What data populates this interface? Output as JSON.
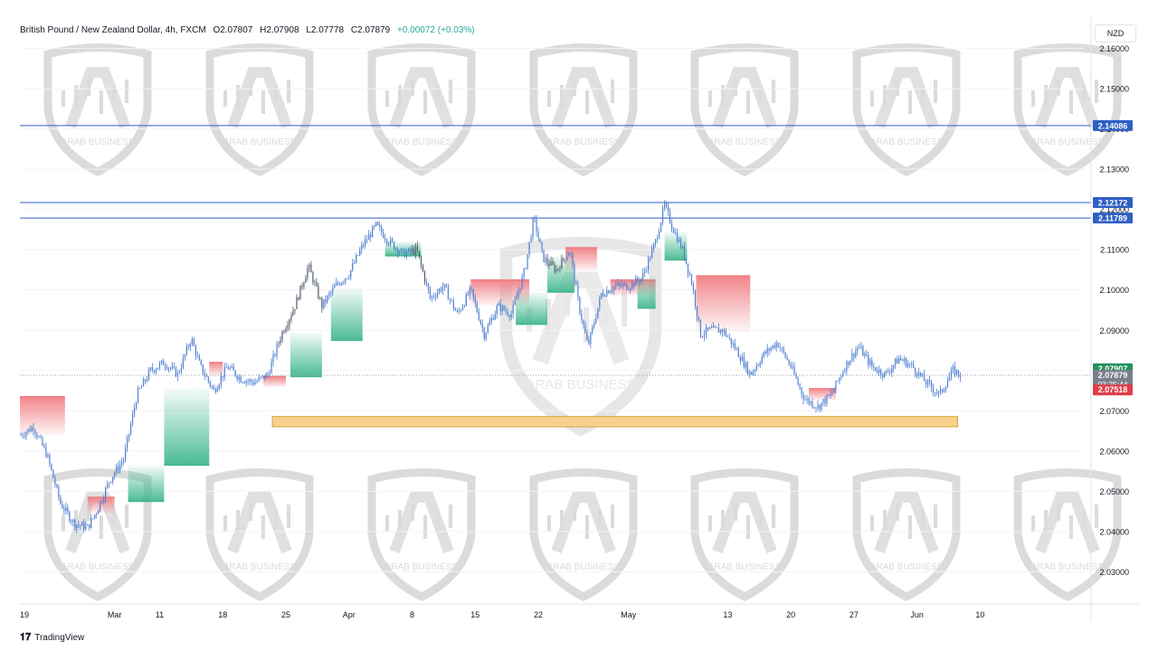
{
  "header": {
    "symbol": "British Pound / New Zealand Dollar, 4h, FXCM",
    "open": "O2.07807",
    "high": "H2.07908",
    "low": "L2.07778",
    "close": "C2.07879",
    "change": "+0.00072 (+0.03%)"
  },
  "currency_button": "NZD",
  "footer": {
    "brand": "TradingView"
  },
  "watermark": {
    "text": "ARAB BUSINESS",
    "monogram": "AB"
  },
  "colors": {
    "candle": "#4f7fd0",
    "candle_dark": "#505a6e",
    "level_line": "#2f5fc4",
    "support_zone_fill": "#f7d28f",
    "support_zone_stroke": "#d9a437",
    "cloud_bull": "#43b88f",
    "cloud_bear": "#f07f84",
    "tag_green": "#26915f",
    "tag_red": "#e03d48",
    "tag_gray": "#7a7f8c",
    "tag_blue": "#2f5fc4"
  },
  "chart_data": {
    "type": "candlestick",
    "title": "British Pound / New Zealand Dollar, 4h, FXCM",
    "ylim": [
      2.022,
      2.168
    ],
    "y_ticks": [
      "2.16000",
      "2.15000",
      "2.14000",
      "2.13000",
      "2.12000",
      "2.11000",
      "2.10000",
      "2.09000",
      "2.08000",
      "2.07000",
      "2.06000",
      "2.05000",
      "2.04000",
      "2.03000"
    ],
    "y_tick_values": [
      2.16,
      2.15,
      2.14,
      2.13,
      2.12,
      2.11,
      2.1,
      2.09,
      2.08,
      2.07,
      2.06,
      2.05,
      2.04,
      2.03
    ],
    "x_ticks": [
      {
        "label": "19",
        "x": 0
      },
      {
        "label": "Mar",
        "x": 10
      },
      {
        "label": "11",
        "x": 15
      },
      {
        "label": "18",
        "x": 22
      },
      {
        "label": "25",
        "x": 29
      },
      {
        "label": "Apr",
        "x": 36
      },
      {
        "label": "8",
        "x": 43
      },
      {
        "label": "15",
        "x": 50
      },
      {
        "label": "22",
        "x": 57
      },
      {
        "label": "May",
        "x": 67
      },
      {
        "label": "13",
        "x": 78
      },
      {
        "label": "20",
        "x": 85
      },
      {
        "label": "27",
        "x": 92
      },
      {
        "label": "Jun",
        "x": 99
      },
      {
        "label": "10",
        "x": 106
      }
    ],
    "x_range": [
      -0.5,
      117.5
    ],
    "close_path": [
      [
        -0.4,
        2.064
      ],
      [
        1,
        2.066
      ],
      [
        2.5,
        2.059
      ],
      [
        4,
        2.047
      ],
      [
        5.5,
        2.042
      ],
      [
        7,
        2.041
      ],
      [
        8,
        2.045
      ],
      [
        9.5,
        2.053
      ],
      [
        11,
        2.058
      ],
      [
        12.5,
        2.074
      ],
      [
        14,
        2.08
      ],
      [
        15.5,
        2.082
      ],
      [
        17,
        2.079
      ],
      [
        18.5,
        2.088
      ],
      [
        19.5,
        2.081
      ],
      [
        21,
        2.075
      ],
      [
        22.5,
        2.081
      ],
      [
        24,
        2.078
      ],
      [
        25.5,
        2.077
      ],
      [
        27,
        2.079
      ],
      [
        28.5,
        2.089
      ],
      [
        30,
        2.096
      ],
      [
        31.5,
        2.106
      ],
      [
        33,
        2.096
      ],
      [
        34.5,
        2.101
      ],
      [
        36,
        2.104
      ],
      [
        37.5,
        2.111
      ],
      [
        39,
        2.116
      ],
      [
        40.5,
        2.112
      ],
      [
        42,
        2.109
      ],
      [
        43.5,
        2.11
      ],
      [
        45,
        2.098
      ],
      [
        46.5,
        2.101
      ],
      [
        48,
        2.094
      ],
      [
        49.5,
        2.1
      ],
      [
        51,
        2.089
      ],
      [
        52.5,
        2.096
      ],
      [
        54,
        2.094
      ],
      [
        55.5,
        2.105
      ],
      [
        56.5,
        2.118
      ],
      [
        57.5,
        2.108
      ],
      [
        59,
        2.105
      ],
      [
        60.5,
        2.11
      ],
      [
        61.5,
        2.096
      ],
      [
        62.5,
        2.086
      ],
      [
        64,
        2.099
      ],
      [
        65.5,
        2.101
      ],
      [
        67,
        2.101
      ],
      [
        68.5,
        2.103
      ],
      [
        70,
        2.112
      ],
      [
        71,
        2.121
      ],
      [
        72,
        2.115
      ],
      [
        73,
        2.11
      ],
      [
        74,
        2.102
      ],
      [
        75,
        2.089
      ],
      [
        76,
        2.09
      ],
      [
        77.5,
        2.09
      ],
      [
        79,
        2.085
      ],
      [
        80.5,
        2.079
      ],
      [
        82,
        2.084
      ],
      [
        83.5,
        2.087
      ],
      [
        85,
        2.081
      ],
      [
        86.5,
        2.073
      ],
      [
        88,
        2.071
      ],
      [
        89.5,
        2.074
      ],
      [
        91,
        2.081
      ],
      [
        92.5,
        2.086
      ],
      [
        94,
        2.081
      ],
      [
        95.5,
        2.079
      ],
      [
        97,
        2.083
      ],
      [
        98.5,
        2.081
      ],
      [
        100,
        2.077
      ],
      [
        101.5,
        2.074
      ],
      [
        103,
        2.08
      ],
      [
        104,
        2.07879
      ]
    ],
    "bear_cloud": [
      {
        "x": [
          -0.5,
          4.5
        ],
        "top": 2.0735,
        "bottom": 2.0638
      },
      {
        "x": [
          7,
          10
        ],
        "top": 2.0485,
        "bottom": 2.0445
      },
      {
        "x": [
          20.5,
          22
        ],
        "top": 2.082,
        "bottom": 2.0785
      },
      {
        "x": [
          26.5,
          29
        ],
        "top": 2.0785,
        "bottom": 2.0758
      },
      {
        "x": [
          49.5,
          56
        ],
        "top": 2.1025,
        "bottom": 2.096
      },
      {
        "x": [
          60,
          63.5
        ],
        "top": 2.1105,
        "bottom": 2.1045
      },
      {
        "x": [
          65,
          70
        ],
        "top": 2.1025,
        "bottom": 2.0985
      },
      {
        "x": [
          74.5,
          80.5
        ],
        "top": 2.1035,
        "bottom": 2.0895
      },
      {
        "x": [
          87,
          90
        ],
        "top": 2.0755,
        "bottom": 2.0725
      }
    ],
    "bull_cloud": [
      {
        "x": [
          11.5,
          15.5
        ],
        "top": 2.0565,
        "bottom": 2.0475
      },
      {
        "x": [
          15.5,
          20.5
        ],
        "top": 2.0755,
        "bottom": 2.0565
      },
      {
        "x": [
          29.5,
          33
        ],
        "top": 2.0895,
        "bottom": 2.0785
      },
      {
        "x": [
          34,
          37.5
        ],
        "top": 2.1005,
        "bottom": 2.0875
      },
      {
        "x": [
          40,
          44
        ],
        "top": 2.112,
        "bottom": 2.1085
      },
      {
        "x": [
          54.5,
          58
        ],
        "top": 2.0995,
        "bottom": 2.0915
      },
      {
        "x": [
          58,
          61
        ],
        "top": 2.1085,
        "bottom": 2.0995
      },
      {
        "x": [
          68,
          70
        ],
        "top": 2.1035,
        "bottom": 2.0955
      },
      {
        "x": [
          71,
          73.5
        ],
        "top": 2.1145,
        "bottom": 2.1075
      }
    ],
    "horizontal_levels": [
      {
        "value": 2.14086,
        "label": "2.14086"
      },
      {
        "value": 2.12172,
        "label": "2.12172"
      },
      {
        "value": 2.11789,
        "label": "2.11789"
      }
    ],
    "support_zone": {
      "x": [
        27.5,
        103.5
      ],
      "top": 2.0679,
      "bottom": 2.0667
    },
    "price_tags": [
      {
        "value": 2.07907,
        "label": "2.07907",
        "kind": "green"
      },
      {
        "value": 2.07879,
        "label": "2.07879",
        "sub": "03:25:44",
        "kind": "gray"
      },
      {
        "value": 2.07518,
        "label": "2.07518",
        "kind": "red"
      }
    ],
    "current_price": 2.07879
  }
}
